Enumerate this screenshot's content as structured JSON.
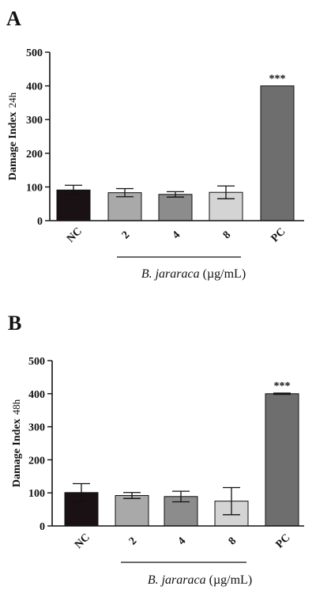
{
  "chart_data": [
    {
      "panel": "A",
      "type": "bar",
      "ylabel": "Damage Index",
      "ylabel_suffix": "24h",
      "ylim": [
        0,
        500
      ],
      "yticks": [
        0,
        100,
        200,
        300,
        400,
        500
      ],
      "categories": [
        "NC",
        "2",
        "4",
        "8",
        "PC"
      ],
      "values": [
        91,
        83,
        78,
        84,
        400
      ],
      "errors": [
        14,
        12,
        8,
        19,
        0
      ],
      "colors": [
        "#1a1114",
        "#a9a9a9",
        "#8c8c8c",
        "#d4d4d4",
        "#6e6e6e"
      ],
      "annotations": [
        {
          "category": "PC",
          "text": "***"
        }
      ],
      "group_label": {
        "italic": "B. jararaca",
        "unit": "(µg/mL)",
        "from": "2",
        "to": "8"
      }
    },
    {
      "panel": "B",
      "type": "bar",
      "ylabel": "Damage Index",
      "ylabel_suffix": "48h",
      "ylim": [
        0,
        500
      ],
      "yticks": [
        0,
        100,
        200,
        300,
        400,
        500
      ],
      "categories": [
        "NC",
        "2",
        "4",
        "8",
        "PC"
      ],
      "values": [
        101,
        92,
        89,
        75,
        400
      ],
      "errors": [
        27,
        9,
        16,
        41,
        2
      ],
      "colors": [
        "#1a1114",
        "#a9a9a9",
        "#8c8c8c",
        "#d4d4d4",
        "#6e6e6e"
      ],
      "annotations": [
        {
          "category": "PC",
          "text": "***"
        }
      ],
      "group_label": {
        "italic": "B. jararaca",
        "unit": "(µg/mL)",
        "from": "2",
        "to": "8"
      }
    }
  ]
}
